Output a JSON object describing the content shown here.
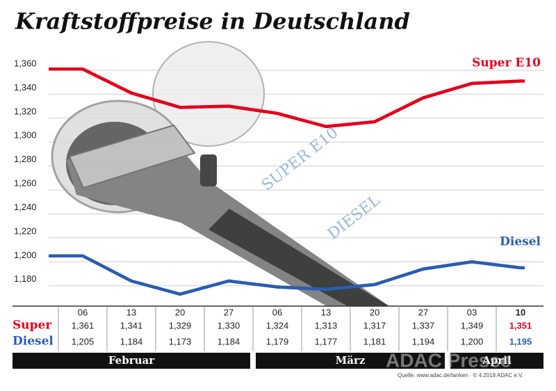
{
  "chart_data": {
    "type": "line",
    "title": "Kraftstoffpreise in Deutschland",
    "groups": [
      {
        "name": "Februar",
        "categories": [
          "06",
          "13",
          "20",
          "27"
        ]
      },
      {
        "name": "März",
        "categories": [
          "06",
          "13",
          "20",
          "27"
        ]
      },
      {
        "name": "April",
        "categories": [
          "03",
          "10"
        ]
      }
    ],
    "series": [
      {
        "name": "Super E10",
        "row_label": "Super",
        "color": "#e3001b",
        "values": [
          1.361,
          1.341,
          1.329,
          1.33,
          1.324,
          1.313,
          1.317,
          1.337,
          1.349,
          1.351
        ],
        "value_labels": [
          "1,361",
          "1,341",
          "1,329",
          "1,330",
          "1,324",
          "1,313",
          "1,317",
          "1,337",
          "1,349",
          "1,351"
        ]
      },
      {
        "name": "Diesel",
        "row_label": "Diesel",
        "color": "#2a5db0",
        "values": [
          1.205,
          1.184,
          1.173,
          1.184,
          1.179,
          1.177,
          1.181,
          1.194,
          1.2,
          1.195
        ],
        "value_labels": [
          "1,205",
          "1,184",
          "1,173",
          "1,184",
          "1,179",
          "1,177",
          "1,181",
          "1,194",
          "1,200",
          "1,195"
        ]
      }
    ],
    "ylim": [
      1.163,
      1.378
    ],
    "yticks": [
      {
        "value": 1.18,
        "label": "1,180"
      },
      {
        "value": 1.2,
        "label": "1,200"
      },
      {
        "value": 1.22,
        "label": "1,220"
      },
      {
        "value": 1.24,
        "label": "1,240"
      },
      {
        "value": 1.26,
        "label": "1,260"
      },
      {
        "value": 1.28,
        "label": "1,280"
      },
      {
        "value": 1.3,
        "label": "1,300"
      },
      {
        "value": 1.32,
        "label": "1,320"
      },
      {
        "value": 1.34,
        "label": "1,340"
      },
      {
        "value": 1.36,
        "label": "1,360"
      }
    ],
    "grid": true,
    "illustration_labels": [
      "SUPER E10",
      "DIESEL"
    ],
    "watermark": "ADAC Presse",
    "source": "Quelle: www.adac.de/tanken · © 4.2018 ADAC e.V."
  }
}
